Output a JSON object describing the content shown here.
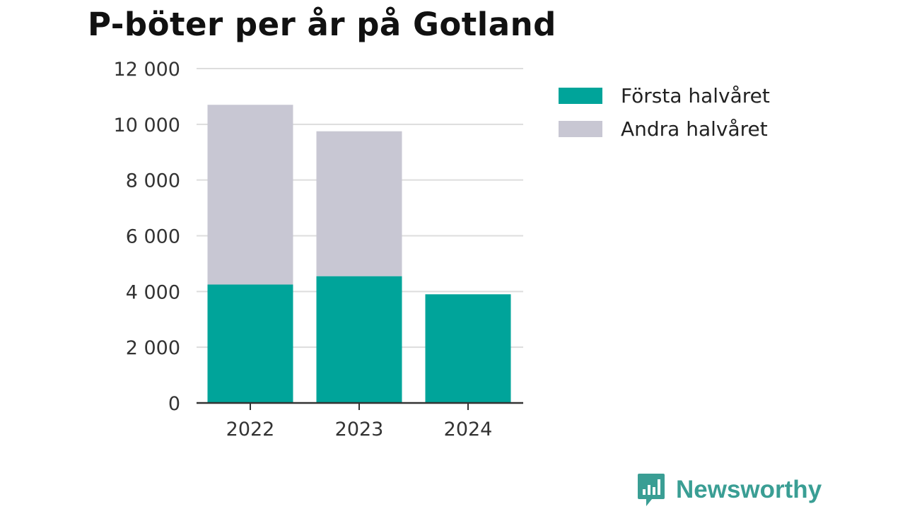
{
  "chart_data": {
    "type": "bar",
    "stacked": true,
    "title": "P-böter per år på Gotland",
    "categories": [
      "2022",
      "2023",
      "2024"
    ],
    "series": [
      {
        "name": "Första halvåret",
        "color": "#00a49a",
        "values": [
          4250,
          4550,
          3900
        ]
      },
      {
        "name": "Andra halvåret",
        "color": "#c8c7d3",
        "values": [
          6450,
          5200,
          0
        ]
      }
    ],
    "ylim": [
      0,
      12000
    ],
    "yticks": [
      0,
      2000,
      4000,
      6000,
      8000,
      10000,
      12000
    ],
    "ytick_labels": [
      "0",
      "2 000",
      "4 000",
      "6 000",
      "8 000",
      "10 000",
      "12 000"
    ],
    "grid": true,
    "legend_position": "top-right"
  },
  "logo": {
    "text": "Newsworthy",
    "color": "#3a9e94",
    "icon": "bar-chart-speech-bubble-icon"
  }
}
